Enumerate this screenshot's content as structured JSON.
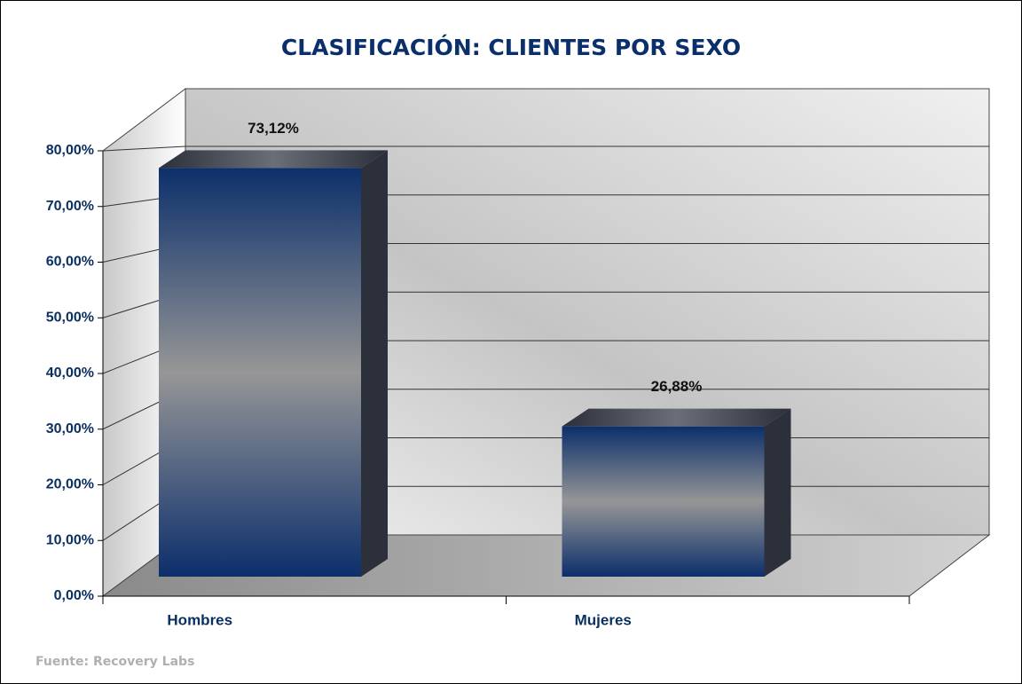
{
  "chart_data": {
    "type": "bar3d",
    "title": "CLASIFICACIÓN: CLIENTES POR SEXO",
    "categories": [
      "Hombres",
      "Mujeres"
    ],
    "values": [
      73.12,
      26.88
    ],
    "value_labels": [
      "73,12%",
      "26,88%"
    ],
    "color": "#0c2f6b",
    "ylim": [
      0,
      80
    ],
    "yticks": [
      {
        "value": 0,
        "label": "0,00%"
      },
      {
        "value": 10,
        "label": "10,00%"
      },
      {
        "value": 20,
        "label": "20,00%"
      },
      {
        "value": 30,
        "label": "30,00%"
      },
      {
        "value": 40,
        "label": "40,00%"
      },
      {
        "value": 50,
        "label": "50,00%"
      },
      {
        "value": 60,
        "label": "60,00%"
      },
      {
        "value": 70,
        "label": "70,00%"
      },
      {
        "value": 80,
        "label": "80,00%"
      }
    ],
    "grid": true,
    "source": "Fuente: Recovery Labs"
  }
}
